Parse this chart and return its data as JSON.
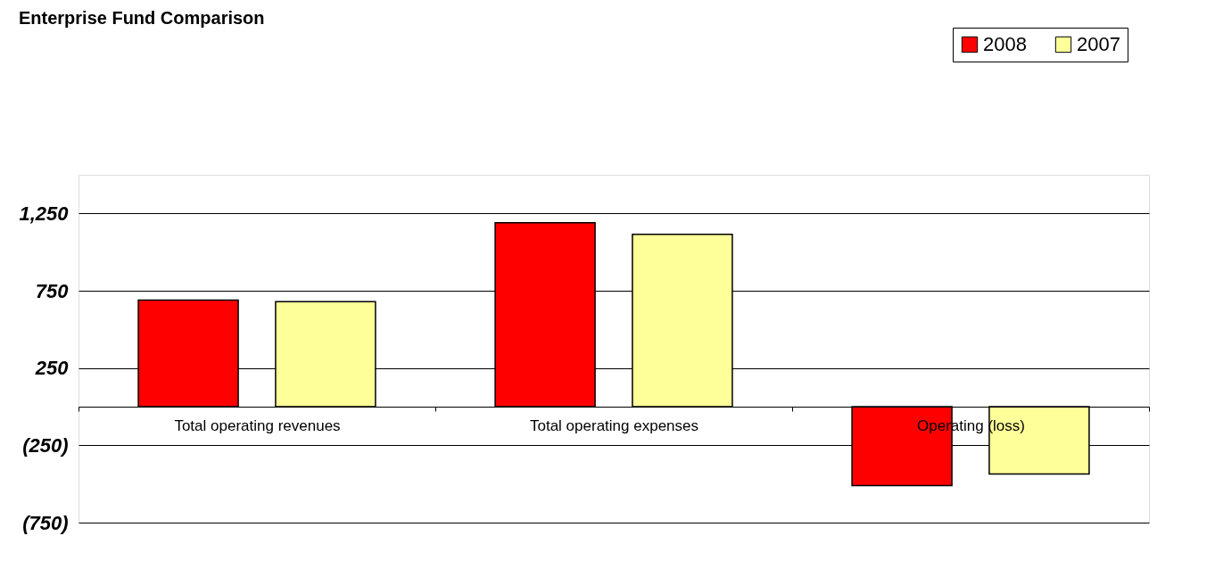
{
  "chart_data": {
    "type": "bar",
    "title": "Enterprise Fund Comparison",
    "categories": [
      "Total operating revenues",
      "Total operating expenses",
      "Operating (loss)"
    ],
    "series": [
      {
        "name": "2008",
        "color": "#ff0000",
        "values": [
          690,
          1190,
          -510
        ]
      },
      {
        "name": "2007",
        "color": "#ffff99",
        "values": [
          680,
          1115,
          -435
        ]
      }
    ],
    "ylim": [
      -750,
      1500
    ],
    "yticks": [
      {
        "value": 1250,
        "label": "1,250"
      },
      750,
      250,
      {
        "value": -250,
        "label": "(250)"
      },
      {
        "value": -750,
        "label": "(750)"
      }
    ],
    "grid": "y",
    "legend": "top right"
  }
}
